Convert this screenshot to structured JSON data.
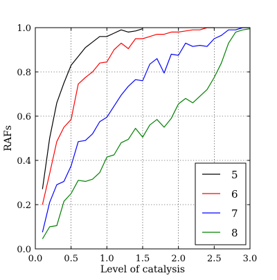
{
  "chart_data": {
    "type": "line",
    "title": "",
    "xlabel": "Level of catalysis",
    "ylabel": "RAFs",
    "xlim": [
      0.0,
      3.0
    ],
    "ylim": [
      0.0,
      1.0
    ],
    "x_ticks": [
      0.0,
      0.5,
      1.0,
      1.5,
      2.0,
      2.5,
      3.0
    ],
    "y_ticks": [
      0.0,
      0.2,
      0.4,
      0.6,
      0.8,
      1.0
    ],
    "x_tick_labels": [
      "0.0",
      "0.5",
      "1.0",
      "1.5",
      "2.0",
      "2.5",
      "3.0"
    ],
    "y_tick_labels": [
      "0.0",
      "0.2",
      "0.4",
      "0.6",
      "0.8",
      "1.0"
    ],
    "grid": true,
    "legend_position": "bottom-right",
    "series": [
      {
        "name": "5",
        "color": "#000000",
        "x": [
          0.1,
          0.2,
          0.3,
          0.4,
          0.5,
          0.6,
          0.7,
          0.8,
          0.9,
          1.0,
          1.1,
          1.2,
          1.3,
          1.4,
          1.5
        ],
        "y": [
          0.27,
          0.5,
          0.66,
          0.75,
          0.83,
          0.87,
          0.91,
          0.935,
          0.96,
          0.96,
          0.975,
          0.99,
          0.98,
          0.985,
          0.995
        ]
      },
      {
        "name": "6",
        "color": "#ff0000",
        "x": [
          0.1,
          0.2,
          0.3,
          0.4,
          0.5,
          0.6,
          0.7,
          0.8,
          0.9,
          1.0,
          1.1,
          1.2,
          1.3,
          1.4,
          1.5,
          1.6,
          1.7,
          1.8,
          1.9,
          2.0,
          2.1,
          2.2,
          2.3,
          2.4,
          2.5
        ],
        "y": [
          0.2,
          0.34,
          0.485,
          0.55,
          0.585,
          0.745,
          0.775,
          0.8,
          0.84,
          0.845,
          0.9,
          0.93,
          0.905,
          0.95,
          0.95,
          0.96,
          0.97,
          0.97,
          0.98,
          0.98,
          0.985,
          0.99,
          0.99,
          1.0,
          1.0
        ]
      },
      {
        "name": "7",
        "color": "#0000ff",
        "x": [
          0.1,
          0.2,
          0.3,
          0.4,
          0.5,
          0.6,
          0.7,
          0.8,
          0.9,
          1.0,
          1.1,
          1.2,
          1.3,
          1.4,
          1.5,
          1.6,
          1.7,
          1.8,
          1.9,
          2.0,
          2.1,
          2.2,
          2.3,
          2.4,
          2.5,
          2.6,
          2.7,
          2.8,
          2.9,
          3.0
        ],
        "y": [
          0.075,
          0.21,
          0.29,
          0.305,
          0.375,
          0.485,
          0.49,
          0.52,
          0.575,
          0.595,
          0.645,
          0.695,
          0.735,
          0.765,
          0.76,
          0.835,
          0.86,
          0.795,
          0.88,
          0.875,
          0.93,
          0.915,
          0.92,
          0.915,
          0.95,
          0.965,
          0.99,
          0.99,
          1.0,
          1.0
        ]
      },
      {
        "name": "8",
        "color": "#008000",
        "x": [
          0.1,
          0.2,
          0.3,
          0.4,
          0.5,
          0.6,
          0.7,
          0.8,
          0.9,
          1.0,
          1.1,
          1.2,
          1.3,
          1.4,
          1.5,
          1.6,
          1.7,
          1.8,
          1.9,
          2.0,
          2.1,
          2.2,
          2.3,
          2.4,
          2.5,
          2.6,
          2.7,
          2.8,
          2.9,
          3.0
        ],
        "y": [
          0.045,
          0.1,
          0.105,
          0.215,
          0.25,
          0.31,
          0.305,
          0.315,
          0.345,
          0.415,
          0.425,
          0.48,
          0.495,
          0.545,
          0.505,
          0.56,
          0.585,
          0.55,
          0.59,
          0.655,
          0.68,
          0.66,
          0.69,
          0.72,
          0.775,
          0.84,
          0.93,
          0.98,
          0.99,
          0.995
        ]
      }
    ]
  }
}
